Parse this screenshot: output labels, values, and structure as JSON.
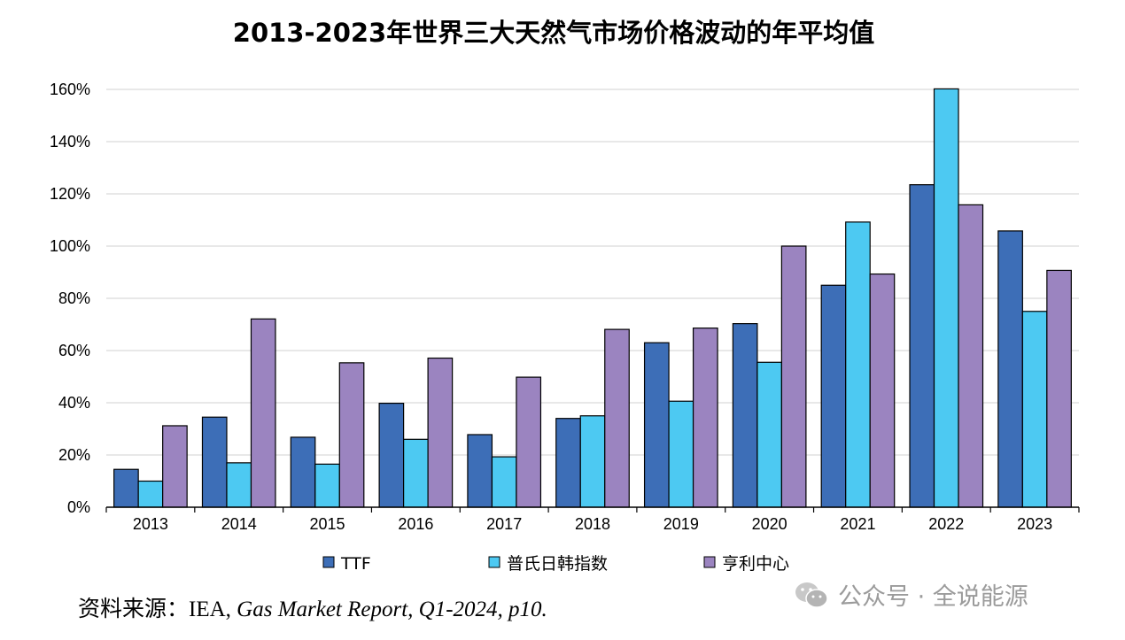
{
  "chart_data": {
    "type": "bar",
    "title": "2013-2023年世界三大天然气市场价格波动的年平均值",
    "categories": [
      "2013",
      "2014",
      "2015",
      "2016",
      "2017",
      "2018",
      "2019",
      "2020",
      "2021",
      "2022",
      "2023"
    ],
    "series": [
      {
        "name": "TTF",
        "color": "#3d6eb7",
        "values": [
          14.5,
          34.5,
          26.8,
          39.8,
          27.8,
          34,
          63,
          70.3,
          85,
          123.5,
          105.8
        ]
      },
      {
        "name": "普氏日韩指数",
        "color": "#4dc9f2",
        "values": [
          10,
          17,
          16.5,
          26,
          19.3,
          35,
          40.6,
          55.5,
          109.2,
          160.2,
          75
        ]
      },
      {
        "name": "亨利中心",
        "color": "#9b84c0",
        "values": [
          31.2,
          72.1,
          55.3,
          57.1,
          49.8,
          68.1,
          68.6,
          100,
          89.3,
          115.8,
          90.7
        ]
      }
    ],
    "ylim": [
      0,
      160
    ],
    "yticks": [
      0,
      20,
      40,
      60,
      80,
      100,
      120,
      140,
      160
    ],
    "ytick_format": "%",
    "grid": true,
    "legend_position": "bottom"
  },
  "source": {
    "prefix": "资料来源：IEA, ",
    "italic": "Gas Market Report, Q1-2024, p10."
  },
  "watermark": {
    "icon": "wechat-icon",
    "text": "公众号 · 全说能源"
  }
}
